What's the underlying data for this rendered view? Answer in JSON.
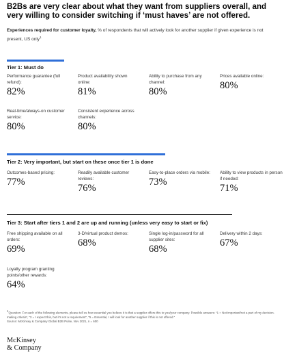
{
  "title": "B2Bs are very clear about what they want from suppliers overall, and very willing to consider switching if ‘must haves’ are not offered.",
  "subtitle": {
    "lead": "Experiences required for customer loyalty,",
    "text": " % of respondents that will actively look for another supplier if given experience is not present, US only",
    "marker": "1"
  },
  "colors": {
    "accent": "#2f6fd8"
  },
  "chart_data": {
    "type": "table",
    "tiers": [
      {
        "label": "Tier 1: Must do",
        "items": [
          {
            "label": "Performance guarantee (full refund):",
            "value": "82%"
          },
          {
            "label": "Product availability shown online:",
            "value": "81%"
          },
          {
            "label": "Ability to purchase from any channel:",
            "value": "80%"
          },
          {
            "label": "Prices available online:",
            "value": "80%"
          },
          {
            "label": "Real-time/always-on customer service:",
            "value": "80%"
          },
          {
            "label": "Consistent experience across channels:",
            "value": "80%"
          }
        ]
      },
      {
        "label": "Tier 2: Very important, but start on these once tier 1 is done",
        "items": [
          {
            "label": "Outcomes-based pricing:",
            "value": "77%"
          },
          {
            "label": "Readily available customer reviews:",
            "value": "76%"
          },
          {
            "label": "Easy-to-place orders via mobile:",
            "value": "73%"
          },
          {
            "label": "Ability to view products in person if needed:",
            "value": "71%"
          }
        ]
      },
      {
        "label": "Tier 3: Start after tiers 1 and 2 are up and running (unless very easy to start or fix)",
        "items": [
          {
            "label": "Free shipping available on all orders:",
            "value": "69%"
          },
          {
            "label": "3-D/virtual product demos:",
            "value": "68%"
          },
          {
            "label": "Single log-in/password for all supplier sites:",
            "value": "68%"
          },
          {
            "label": "Delivery within 2 days:",
            "value": "67%"
          },
          {
            "label": "Loyalty program granting points/other rewards:",
            "value": "64%"
          }
        ]
      }
    ]
  },
  "footnote": {
    "marker": "1",
    "text": "Question: For each of the following elements, please tell us how essential you believe it is that a supplier offers this to you/your company. Possible answers: “1 = Not important/not a part of my decision-making criteria”, “3 = I expect this, but it’s not a requirement”, “5 = Essential, I will look for another supplier if this is not offered.”",
    "source": "Source: McKinsey & Company Global B2B Pulse, Nov 2021, n = 600"
  },
  "logo": {
    "line1": "McKinsey",
    "line2": "& Company"
  }
}
